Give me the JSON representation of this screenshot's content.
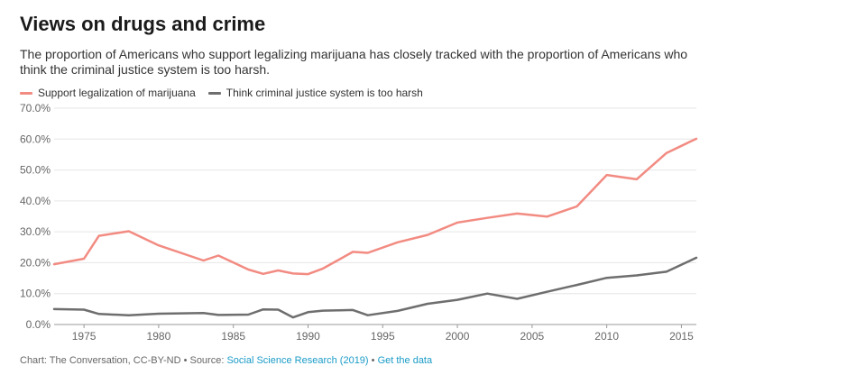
{
  "header": {
    "title": "Views on drugs and crime",
    "subtitle": "The proportion of Americans who support legalizing marijuana has closely tracked with the proportion of Americans who think the criminal justice system is too harsh."
  },
  "footer": {
    "credit": "Chart: The Conversation, CC-BY-ND • Source: ",
    "source_link": "Social Science Research (2019)",
    "separator": " • ",
    "data_link": "Get the data"
  },
  "colors": {
    "marijuana": "#f28b82",
    "harsh": "#6e6e6e",
    "grid": "#e6e6e6",
    "axis": "#999999",
    "tick_text": "#666666"
  },
  "chart_data": {
    "type": "line",
    "title": "Views on drugs and crime",
    "xlabel": "",
    "ylabel": "",
    "xlim": [
      1973,
      2016
    ],
    "ylim": [
      0,
      70
    ],
    "x_ticks": [
      1975,
      1980,
      1985,
      1990,
      1995,
      2000,
      2005,
      2010,
      2015
    ],
    "y_ticks": [
      0,
      10,
      20,
      30,
      40,
      50,
      60,
      70
    ],
    "y_tick_labels": [
      "0.0%",
      "10.0%",
      "20.0%",
      "30.0%",
      "40.0%",
      "50.0%",
      "60.0%",
      "70.0%"
    ],
    "grid": true,
    "legend": "top-left",
    "series": [
      {
        "name": "Support legalization of marijuana",
        "color": "#f28b82",
        "points": [
          [
            1973,
            19.5
          ],
          [
            1975,
            21.3
          ],
          [
            1976,
            28.7
          ],
          [
            1978,
            30.2
          ],
          [
            1980,
            25.6
          ],
          [
            1983,
            20.7
          ],
          [
            1984,
            22.3
          ],
          [
            1986,
            17.8
          ],
          [
            1987,
            16.4
          ],
          [
            1988,
            17.5
          ],
          [
            1989,
            16.5
          ],
          [
            1990,
            16.3
          ],
          [
            1991,
            18.1
          ],
          [
            1993,
            23.5
          ],
          [
            1994,
            23.2
          ],
          [
            1996,
            26.6
          ],
          [
            1998,
            29.0
          ],
          [
            2000,
            33.0
          ],
          [
            2002,
            34.5
          ],
          [
            2004,
            35.9
          ],
          [
            2006,
            34.9
          ],
          [
            2008,
            38.2
          ],
          [
            2010,
            48.4
          ],
          [
            2012,
            47.0
          ],
          [
            2014,
            55.5
          ],
          [
            2016,
            60.1
          ]
        ]
      },
      {
        "name": "Think criminal justice system is too harsh",
        "color": "#6e6e6e",
        "points": [
          [
            1973,
            5.0
          ],
          [
            1975,
            4.8
          ],
          [
            1976,
            3.4
          ],
          [
            1978,
            3.0
          ],
          [
            1980,
            3.5
          ],
          [
            1983,
            3.7
          ],
          [
            1984,
            3.1
          ],
          [
            1986,
            3.2
          ],
          [
            1987,
            4.9
          ],
          [
            1988,
            4.8
          ],
          [
            1989,
            2.3
          ],
          [
            1990,
            4.0
          ],
          [
            1991,
            4.5
          ],
          [
            1993,
            4.7
          ],
          [
            1994,
            3.0
          ],
          [
            1996,
            4.4
          ],
          [
            1998,
            6.7
          ],
          [
            2000,
            8.0
          ],
          [
            2002,
            10.0
          ],
          [
            2004,
            8.3
          ],
          [
            2006,
            10.6
          ],
          [
            2008,
            12.8
          ],
          [
            2010,
            15.1
          ],
          [
            2012,
            15.9
          ],
          [
            2014,
            17.1
          ],
          [
            2016,
            21.6
          ]
        ]
      }
    ]
  }
}
